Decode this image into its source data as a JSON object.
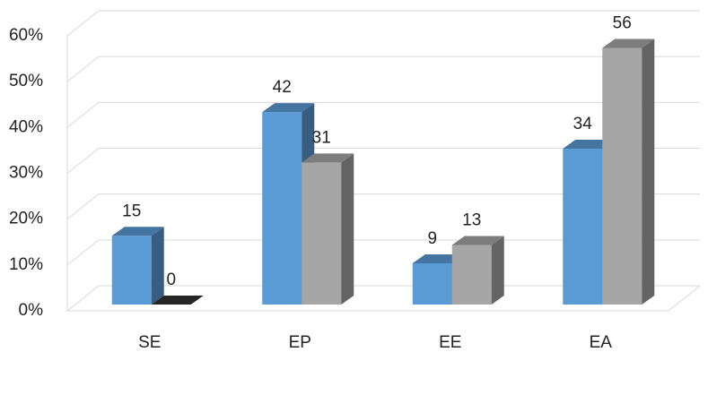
{
  "chart_data": {
    "type": "bar3d",
    "categories": [
      "SE",
      "EP",
      "EE",
      "EA"
    ],
    "series": [
      {
        "color": "#5b9bd5",
        "values": [
          15,
          42,
          9,
          34
        ]
      },
      {
        "color": "#a6a6a6",
        "values": [
          0,
          31,
          13,
          56
        ]
      }
    ],
    "ylim": [
      0,
      60
    ],
    "yticks": [
      {
        "value": 0,
        "label": "0%"
      },
      {
        "value": 10,
        "label": "10%"
      },
      {
        "value": 20,
        "label": "20%"
      },
      {
        "value": 30,
        "label": "30%"
      },
      {
        "value": 40,
        "label": "40%"
      },
      {
        "value": 50,
        "label": "50%"
      },
      {
        "value": 60,
        "label": "60%"
      }
    ],
    "grid": true
  }
}
